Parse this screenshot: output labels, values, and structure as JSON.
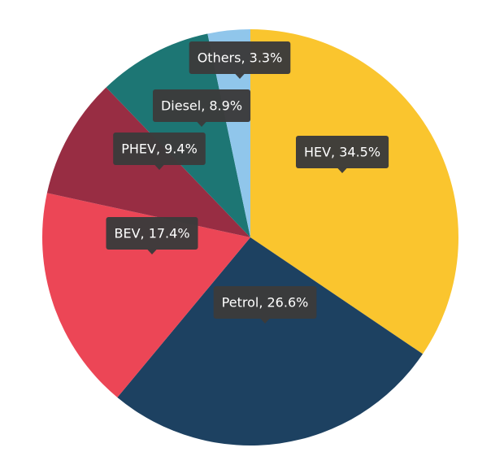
{
  "chart_data": {
    "type": "pie",
    "title": "",
    "start": "top",
    "direction": "clockwise",
    "slices": [
      {
        "label": "HEV",
        "value": 34.5,
        "tooltip": "HEV, 34.5%",
        "color": "#fac52e"
      },
      {
        "label": "Petrol",
        "value": 26.6,
        "tooltip": "Petrol, 26.6%",
        "color": "#1d4161"
      },
      {
        "label": "BEV",
        "value": 17.4,
        "tooltip": "BEV, 17.4%",
        "color": "#ec4656"
      },
      {
        "label": "PHEV",
        "value": 9.4,
        "tooltip": "PHEV, 9.4%",
        "color": "#982d43"
      },
      {
        "label": "Diesel",
        "value": 8.9,
        "tooltip": "Diesel, 8.9%",
        "color": "#1d7674"
      },
      {
        "label": "Others",
        "value": 3.3,
        "tooltip": "Others, 3.3%",
        "color": "#90c6eb"
      }
    ]
  }
}
